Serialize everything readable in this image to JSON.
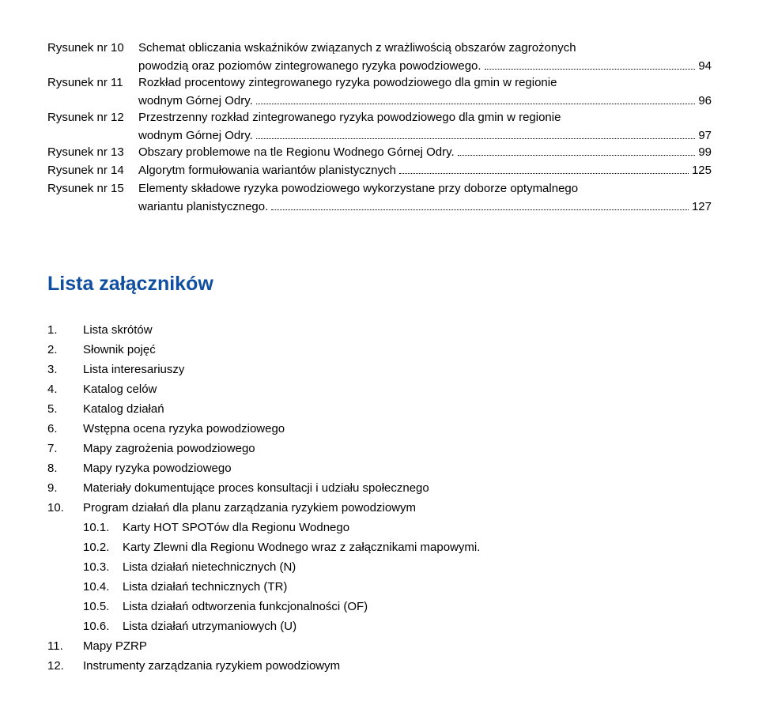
{
  "figures": [
    {
      "label": "Rysunek nr 10",
      "text1": "Schemat obliczania wskaźników związanych z wrażliwością obszarów zagrożonych",
      "text2": "powodzią oraz poziomów zintegrowanego ryzyka powodziowego.",
      "page": "94"
    },
    {
      "label": "Rysunek nr 11",
      "text1": "Rozkład procentowy zintegrowanego ryzyka powodziowego dla gmin w regionie",
      "text2": "wodnym Górnej Odry.",
      "page": "96"
    },
    {
      "label": "Rysunek nr 12",
      "text1": "Przestrzenny rozkład zintegrowanego ryzyka powodziowego dla gmin w regionie",
      "text2": "wodnym Górnej Odry.",
      "page": "97"
    },
    {
      "label": "Rysunek nr 13",
      "text1": "Obszary problemowe na tle Regionu Wodnego Górnej Odry.",
      "page": "99"
    },
    {
      "label": "Rysunek nr 14",
      "text1": "Algorytm formułowania wariantów planistycznych",
      "page": "125"
    },
    {
      "label": "Rysunek nr 15",
      "text1": "Elementy składowe ryzyka powodziowego wykorzystane przy doborze optymalnego",
      "text2": "wariantu planistycznego.",
      "page": "127"
    }
  ],
  "attachments_title": "Lista załączników",
  "attachments": [
    {
      "num": "1.",
      "text": "Lista skrótów"
    },
    {
      "num": "2.",
      "text": "Słownik pojęć"
    },
    {
      "num": "3.",
      "text": "Lista interesariuszy"
    },
    {
      "num": "4.",
      "text": "Katalog celów"
    },
    {
      "num": "5.",
      "text": "Katalog działań"
    },
    {
      "num": "6.",
      "text": "Wstępna ocena ryzyka powodziowego"
    },
    {
      "num": "7.",
      "text": "Mapy zagrożenia powodziowego"
    },
    {
      "num": "8.",
      "text": "Mapy ryzyka powodziowego"
    },
    {
      "num": "9.",
      "text": "Materiały dokumentujące proces konsultacji i udziału społecznego"
    },
    {
      "num": "10.",
      "text": "Program działań dla planu zarządzania ryzykiem powodziowym",
      "subs": [
        {
          "num": "10.1.",
          "text": "Karty HOT SPOTów dla Regionu Wodnego"
        },
        {
          "num": "10.2.",
          "text": "Karty Zlewni dla Regionu Wodnego wraz z załącznikami mapowymi."
        },
        {
          "num": "10.3.",
          "text": "Lista działań nietechnicznych (N)"
        },
        {
          "num": "10.4.",
          "text": "Lista działań technicznych (TR)"
        },
        {
          "num": "10.5.",
          "text": "Lista działań odtworzenia funkcjonalności (OF)"
        },
        {
          "num": "10.6.",
          "text": "Lista działań utrzymaniowych (U)"
        }
      ]
    },
    {
      "num": "11.",
      "text": "Mapy PZRP"
    },
    {
      "num": "12.",
      "text": "Instrumenty zarządzania ryzykiem powodziowym"
    }
  ]
}
